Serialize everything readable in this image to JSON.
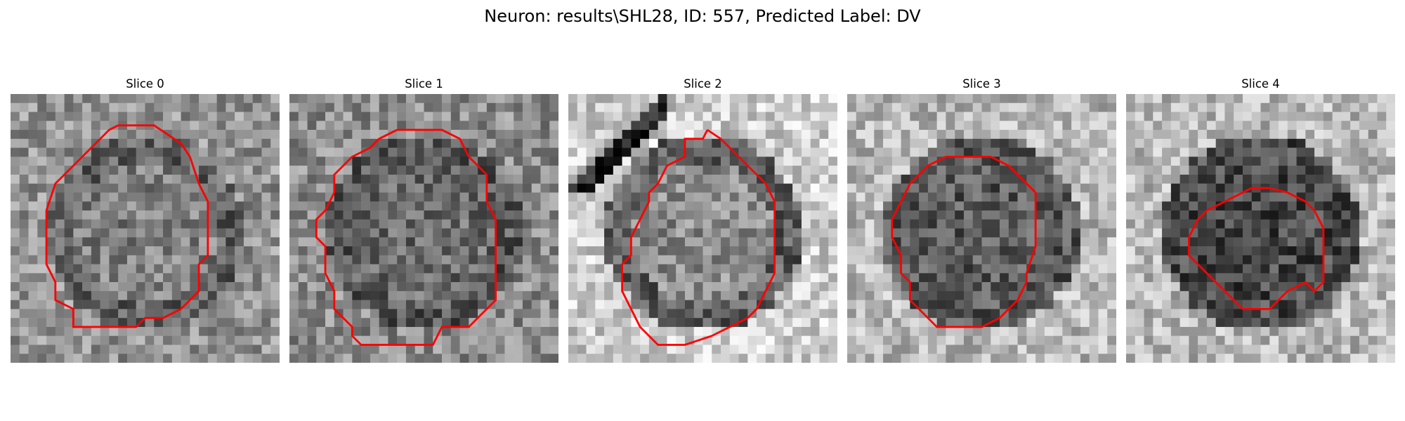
{
  "figure": {
    "title": "Neuron: results\\SHL28, ID: 557, Predicted Label: DV"
  },
  "panels": [
    {
      "title": "Slice 0",
      "image": {
        "background_mean": 0.58,
        "ring_dark": 0.3,
        "inner_mean": 0.5,
        "seed": 11
      },
      "contour_color": "#ff0000",
      "contour": [
        [
          12,
          3.5
        ],
        [
          16,
          3.5
        ],
        [
          19,
          5.5
        ],
        [
          20,
          7
        ],
        [
          21,
          10
        ],
        [
          22,
          12
        ],
        [
          22,
          18
        ],
        [
          21,
          19
        ],
        [
          21,
          22
        ],
        [
          19,
          24
        ],
        [
          17,
          25
        ],
        [
          15,
          25
        ],
        [
          14,
          26
        ],
        [
          7,
          26
        ],
        [
          7,
          24
        ],
        [
          5,
          23
        ],
        [
          5,
          21
        ],
        [
          4,
          19
        ],
        [
          4,
          13
        ],
        [
          5,
          10
        ],
        [
          7,
          8
        ],
        [
          8,
          7
        ],
        [
          10,
          5
        ],
        [
          11,
          4
        ],
        [
          12,
          3.5
        ]
      ]
    },
    {
      "title": "Slice 1",
      "image": {
        "background_mean": 0.55,
        "ring_dark": 0.3,
        "inner_mean": 0.42,
        "seed": 23
      },
      "contour_color": "#ff0000",
      "contour": [
        [
          12,
          4
        ],
        [
          17,
          4
        ],
        [
          19,
          5
        ],
        [
          20,
          7
        ],
        [
          22,
          9
        ],
        [
          22,
          12
        ],
        [
          23,
          14
        ],
        [
          23,
          23
        ],
        [
          22,
          24
        ],
        [
          21,
          25
        ],
        [
          20,
          26
        ],
        [
          17,
          26
        ],
        [
          16,
          28
        ],
        [
          8,
          28
        ],
        [
          7,
          27
        ],
        [
          7,
          26
        ],
        [
          6,
          25
        ],
        [
          5,
          24
        ],
        [
          5,
          22
        ],
        [
          4,
          20
        ],
        [
          4,
          17
        ],
        [
          3,
          16
        ],
        [
          3,
          14
        ],
        [
          4,
          13
        ],
        [
          5,
          11
        ],
        [
          5,
          9
        ],
        [
          7,
          7
        ],
        [
          9,
          6
        ],
        [
          10,
          5
        ],
        [
          12,
          4
        ]
      ]
    },
    {
      "title": "Slice 2",
      "image": {
        "background_mean": 0.8,
        "ring_dark": 0.25,
        "inner_mean": 0.55,
        "seed": 37,
        "dark_streak": true
      },
      "contour_color": "#ff0000",
      "contour": [
        [
          15.5,
          4
        ],
        [
          17,
          5
        ],
        [
          19,
          7
        ],
        [
          22,
          10
        ],
        [
          23,
          12
        ],
        [
          23,
          20
        ],
        [
          22,
          22
        ],
        [
          21,
          24
        ],
        [
          20,
          25
        ],
        [
          18,
          26
        ],
        [
          16,
          27
        ],
        [
          13,
          28
        ],
        [
          10,
          28
        ],
        [
          9,
          27
        ],
        [
          8,
          26
        ],
        [
          7,
          24
        ],
        [
          6,
          22
        ],
        [
          6,
          19
        ],
        [
          7,
          18
        ],
        [
          7,
          16
        ],
        [
          8,
          14
        ],
        [
          9,
          12
        ],
        [
          9,
          11
        ],
        [
          10,
          10
        ],
        [
          11,
          8
        ],
        [
          13,
          7
        ],
        [
          13,
          5
        ],
        [
          15,
          5
        ],
        [
          15.5,
          4
        ]
      ]
    },
    {
      "title": "Slice 3",
      "image": {
        "background_mean": 0.72,
        "ring_dark": 0.35,
        "inner_mean": 0.35,
        "seed": 49
      },
      "contour_color": "#ff0000",
      "contour": [
        [
          13,
          7
        ],
        [
          16,
          7
        ],
        [
          18,
          8
        ],
        [
          20,
          10
        ],
        [
          21,
          11
        ],
        [
          21,
          17
        ],
        [
          20,
          20
        ],
        [
          20,
          21
        ],
        [
          19,
          23
        ],
        [
          18,
          24
        ],
        [
          17,
          25
        ],
        [
          15,
          26
        ],
        [
          10,
          26
        ],
        [
          9,
          25
        ],
        [
          8,
          24
        ],
        [
          7,
          23
        ],
        [
          7,
          21
        ],
        [
          6,
          20
        ],
        [
          6,
          18
        ],
        [
          5,
          16
        ],
        [
          5,
          14
        ],
        [
          6,
          12
        ],
        [
          7,
          10
        ],
        [
          9,
          8
        ],
        [
          11,
          7
        ],
        [
          13,
          7
        ]
      ]
    },
    {
      "title": "Slice 4",
      "image": {
        "background_mean": 0.72,
        "ring_dark": 0.3,
        "inner_mean": 0.28,
        "seed": 61
      },
      "contour_color": "#ff0000",
      "contour": [
        [
          16,
          10.5
        ],
        [
          18,
          11
        ],
        [
          20,
          12
        ],
        [
          21,
          13
        ],
        [
          22,
          15
        ],
        [
          22,
          21
        ],
        [
          21,
          22
        ],
        [
          20,
          21
        ],
        [
          18,
          22
        ],
        [
          16,
          24
        ],
        [
          13,
          24
        ],
        [
          11,
          22
        ],
        [
          10,
          21
        ],
        [
          9,
          20
        ],
        [
          8,
          19
        ],
        [
          7,
          18
        ],
        [
          7,
          17
        ],
        [
          7,
          16
        ],
        [
          8,
          14
        ],
        [
          9,
          13
        ],
        [
          11,
          12
        ],
        [
          13,
          11
        ],
        [
          14,
          10.5
        ],
        [
          16,
          10.5
        ]
      ]
    }
  ]
}
